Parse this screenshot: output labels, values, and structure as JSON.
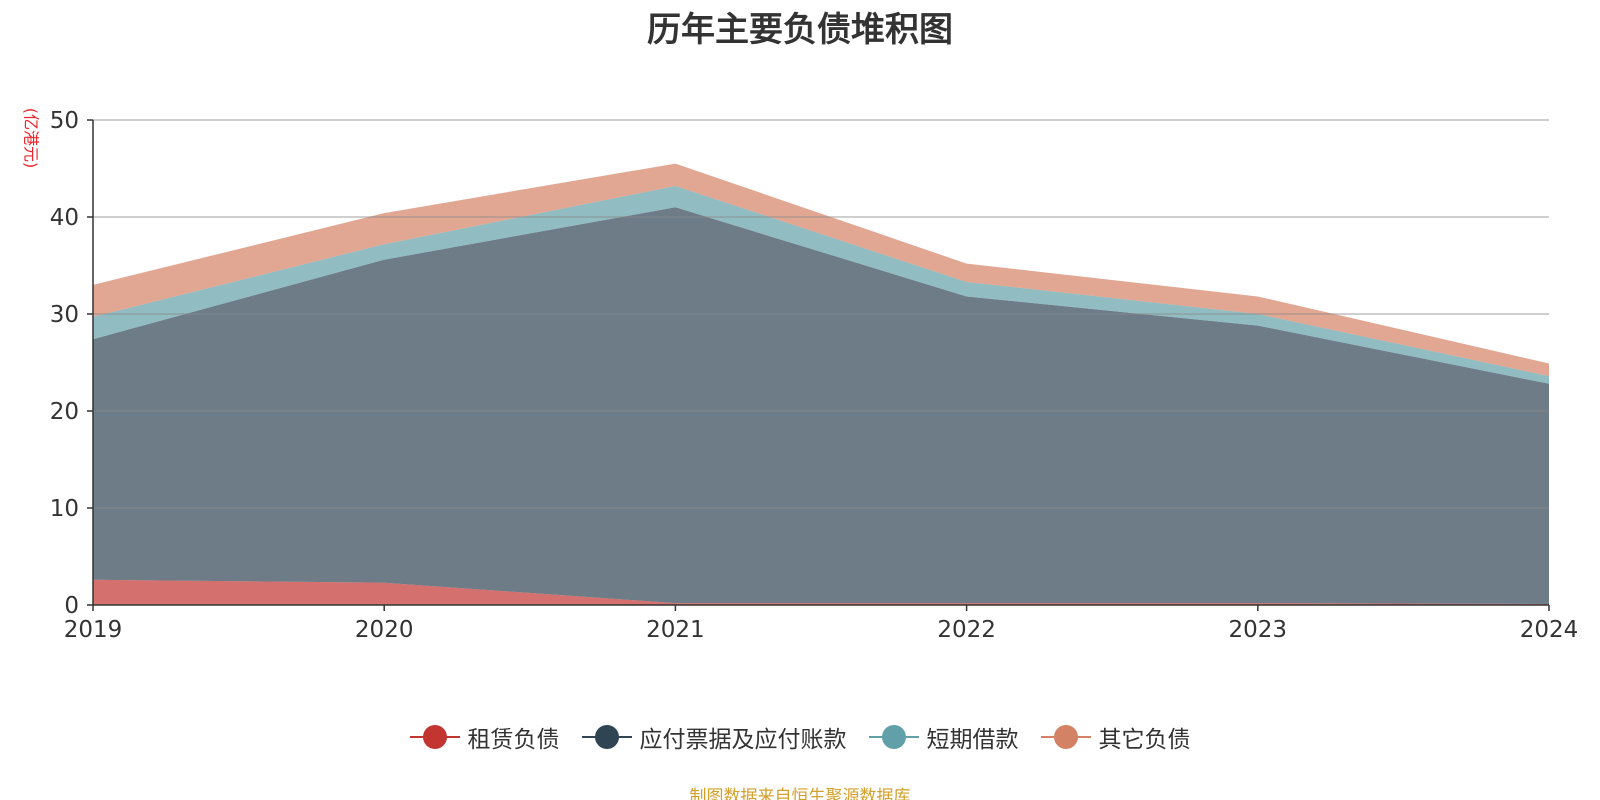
{
  "chart_data": {
    "type": "area",
    "stacked": true,
    "title": "历年主要负债堆积图",
    "unit_label": "(亿港元)",
    "x": [
      "2019",
      "2020",
      "2021",
      "2022",
      "2023",
      "2024"
    ],
    "ylim": [
      0,
      50
    ],
    "yticks": [
      "0",
      "10",
      "20",
      "30",
      "40",
      "50"
    ],
    "grid": true,
    "legend_position": "bottom",
    "series": [
      {
        "name": "租赁负债",
        "color": "#c23531",
        "values": [
          2.6,
          2.3,
          0.2,
          0.2,
          0.2,
          0.1
        ]
      },
      {
        "name": "应付票据及应付账款",
        "color": "#2f4554",
        "values": [
          24.8,
          33.3,
          40.8,
          31.6,
          28.6,
          22.7
        ]
      },
      {
        "name": "短期借款",
        "color": "#61a0a8",
        "values": [
          2.3,
          1.6,
          2.2,
          1.5,
          1.2,
          0.8
        ]
      },
      {
        "name": "其它负债",
        "color": "#d48265",
        "values": [
          3.3,
          3.2,
          2.3,
          1.9,
          1.8,
          1.3
        ]
      }
    ]
  },
  "source_note": "制图数据来自恒生聚源数据库"
}
